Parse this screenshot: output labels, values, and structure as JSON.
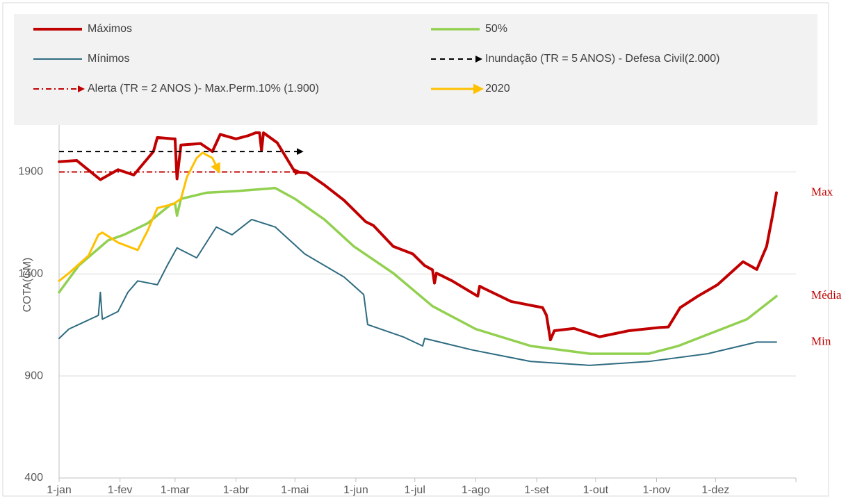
{
  "chart_data": {
    "type": "line",
    "y_label": "COTA(CM)",
    "xlim": [
      0,
      365
    ],
    "xticks": [
      {
        "value": 0,
        "label": "1-jan"
      },
      {
        "value": 31,
        "label": "1-fev"
      },
      {
        "value": 59,
        "label": "1-mar"
      },
      {
        "value": 90,
        "label": "1-abr"
      },
      {
        "value": 120,
        "label": "1-mai"
      },
      {
        "value": 151,
        "label": "1-jun"
      },
      {
        "value": 181,
        "label": "1-jul"
      },
      {
        "value": 212,
        "label": "1-ago"
      },
      {
        "value": 243,
        "label": "1-set"
      },
      {
        "value": 273,
        "label": "1-out"
      },
      {
        "value": 304,
        "label": "1-nov"
      },
      {
        "value": 334,
        "label": "1-dez"
      }
    ],
    "ylim": [
      400,
      2300
    ],
    "yticks": [
      400,
      900,
      1400,
      1900
    ],
    "grid": true,
    "series": [
      {
        "name": "Máximos",
        "color": "#c00000",
        "width": 4,
        "end_label": "Max",
        "x": [
          0,
          9,
          21,
          30,
          38,
          48,
          50,
          58,
          59,
          60,
          62,
          72,
          78,
          82,
          90,
          96,
          100,
          102,
          103,
          104,
          111,
          120,
          126,
          135,
          145,
          156,
          160,
          170,
          180,
          186,
          190,
          191,
          192,
          200,
          213,
          214,
          216,
          230,
          246,
          248,
          250,
          252,
          262,
          275,
          290,
          305,
          310,
          316,
          325,
          335,
          348,
          355,
          360,
          363,
          365
        ],
        "values": [
          1950,
          1956,
          1862,
          1911,
          1885,
          2000,
          2069,
          2062,
          2062,
          1866,
          2032,
          2039,
          2000,
          2084,
          2062,
          2077,
          2092,
          2092,
          2005,
          2092,
          2043,
          1900,
          1896,
          1836,
          1761,
          1656,
          1637,
          1535,
          1498,
          1441,
          1420,
          1355,
          1404,
          1366,
          1291,
          1340,
          1330,
          1265,
          1235,
          1197,
          1077,
          1122,
          1133,
          1092,
          1122,
          1137,
          1140,
          1235,
          1291,
          1347,
          1460,
          1422,
          1535,
          1686,
          1798
        ]
      },
      {
        "name": "50%",
        "color": "#92d050",
        "width": 3.5,
        "end_label": "Média",
        "x": [
          0,
          10,
          25,
          33,
          45,
          57,
          59,
          60,
          62,
          75,
          90,
          110,
          120,
          135,
          150,
          170,
          190,
          212,
          240,
          270,
          300,
          315,
          335,
          350,
          365
        ],
        "values": [
          1310,
          1441,
          1565,
          1592,
          1648,
          1742,
          1745,
          1686,
          1768,
          1798,
          1806,
          1821,
          1768,
          1667,
          1535,
          1404,
          1242,
          1130,
          1047,
          1009,
          1009,
          1047,
          1122,
          1178,
          1291
        ]
      },
      {
        "name": "Mínimos",
        "color": "#2e6b80",
        "width": 2,
        "end_label": "Min",
        "x": [
          0,
          5,
          20,
          21,
          22,
          30,
          35,
          40,
          50,
          55,
          60,
          70,
          80,
          88,
          98,
          110,
          125,
          145,
          155,
          157,
          175,
          185,
          186,
          210,
          240,
          270,
          300,
          330,
          355,
          365
        ],
        "values": [
          1084,
          1130,
          1197,
          1310,
          1178,
          1216,
          1310,
          1366,
          1347,
          1441,
          1528,
          1479,
          1630,
          1592,
          1667,
          1630,
          1498,
          1385,
          1299,
          1152,
          1092,
          1047,
          1084,
          1028,
          971,
          952,
          971,
          1009,
          1066,
          1066
        ]
      },
      {
        "name": "Inundação (TR = 5 ANOS) - Defesa Civil(2.000)",
        "color": "#000000",
        "width": 2,
        "dash": "7,6",
        "arrow": true,
        "x": [
          0,
          123
        ],
        "values": [
          2000,
          2000
        ]
      },
      {
        "name": "Alerta (TR = 2 ANOS )- Max.Perm.10% (1.900)",
        "color": "#c00000",
        "width": 2,
        "dash": "8,4,2,4",
        "arrow": true,
        "x": [
          0,
          122
        ],
        "values": [
          1900,
          1900
        ]
      },
      {
        "name": "2020",
        "color": "#ffc000",
        "width": 3,
        "arrow": true,
        "x": [
          0,
          5,
          15,
          20,
          22,
          30,
          40,
          45,
          50,
          58,
          62,
          65,
          70,
          73,
          78,
          81
        ],
        "values": [
          1366,
          1404,
          1490,
          1592,
          1603,
          1554,
          1517,
          1611,
          1723,
          1742,
          1768,
          1874,
          1968,
          1994,
          1968,
          1910
        ]
      }
    ]
  }
}
